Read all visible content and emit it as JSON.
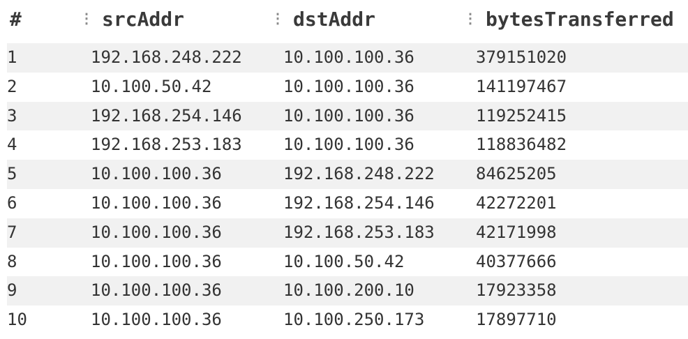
{
  "table": {
    "columns": [
      "#",
      "srcAddr",
      "dstAddr",
      "bytesTransferred"
    ],
    "column_grip_icon": "vertical-ellipsis-icon",
    "rows": [
      {
        "num": "1",
        "srcAddr": "192.168.248.222",
        "dstAddr": "10.100.100.36",
        "bytesTransferred": "379151020"
      },
      {
        "num": "2",
        "srcAddr": "10.100.50.42",
        "dstAddr": "10.100.100.36",
        "bytesTransferred": "141197467"
      },
      {
        "num": "3",
        "srcAddr": "192.168.254.146",
        "dstAddr": "10.100.100.36",
        "bytesTransferred": "119252415"
      },
      {
        "num": "4",
        "srcAddr": "192.168.253.183",
        "dstAddr": "10.100.100.36",
        "bytesTransferred": "118836482"
      },
      {
        "num": "5",
        "srcAddr": "10.100.100.36",
        "dstAddr": "192.168.248.222",
        "bytesTransferred": "84625205"
      },
      {
        "num": "6",
        "srcAddr": "10.100.100.36",
        "dstAddr": "192.168.254.146",
        "bytesTransferred": "42272201"
      },
      {
        "num": "7",
        "srcAddr": "10.100.100.36",
        "dstAddr": "192.168.253.183",
        "bytesTransferred": "42171998"
      },
      {
        "num": "8",
        "srcAddr": "10.100.100.36",
        "dstAddr": "10.100.50.42",
        "bytesTransferred": "40377666"
      },
      {
        "num": "9",
        "srcAddr": "10.100.100.36",
        "dstAddr": "10.100.200.10",
        "bytesTransferred": "17923358"
      },
      {
        "num": "10",
        "srcAddr": "10.100.100.36",
        "dstAddr": "10.100.250.173",
        "bytesTransferred": "17897710"
      }
    ]
  },
  "colors": {
    "stripe": "#f1f1f1",
    "text": "#333333",
    "grip": "#8a8a8a"
  }
}
